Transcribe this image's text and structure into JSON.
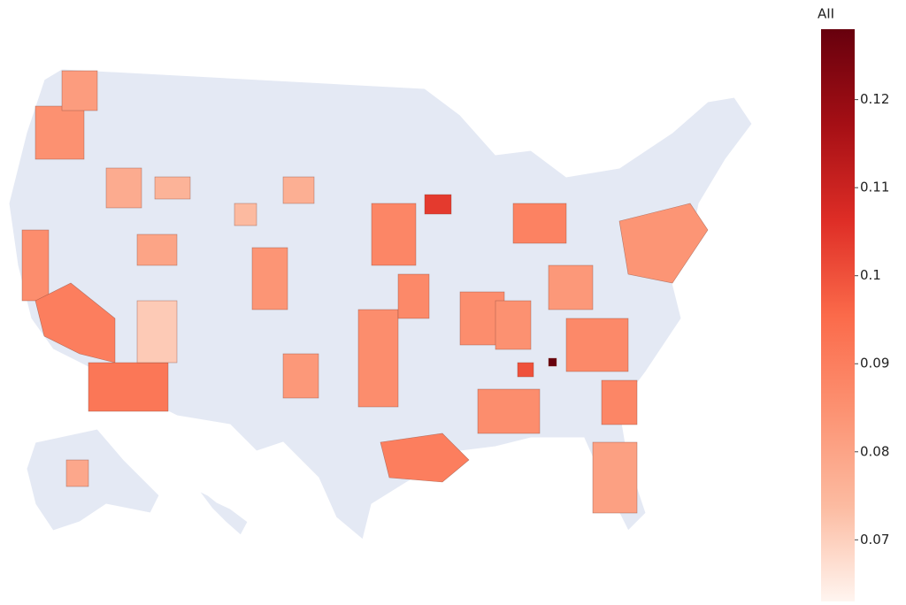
{
  "map": {
    "type": "choropleth",
    "colorbar": {
      "title": "AII",
      "range": [
        0.063,
        0.128
      ],
      "ticks": [
        0.07,
        0.08,
        0.09,
        0.1,
        0.11,
        0.12
      ],
      "colors": [
        "#fff5f0",
        "#fcbba1",
        "#fc9272",
        "#fb6a4a",
        "#de2d26",
        "#a50f15",
        "#67000d"
      ]
    },
    "values": [
      0.085,
      0.082,
      0.078,
      0.076,
      0.086,
      0.09,
      0.092,
      0.071,
      0.08,
      0.077,
      0.084,
      0.074,
      0.083,
      0.086,
      0.104,
      0.088,
      0.087,
      0.09,
      0.086,
      0.089,
      0.1,
      0.128,
      0.085,
      0.087,
      0.084,
      0.081,
      0.086,
      0.083,
      0.079,
      0.088
    ]
  }
}
